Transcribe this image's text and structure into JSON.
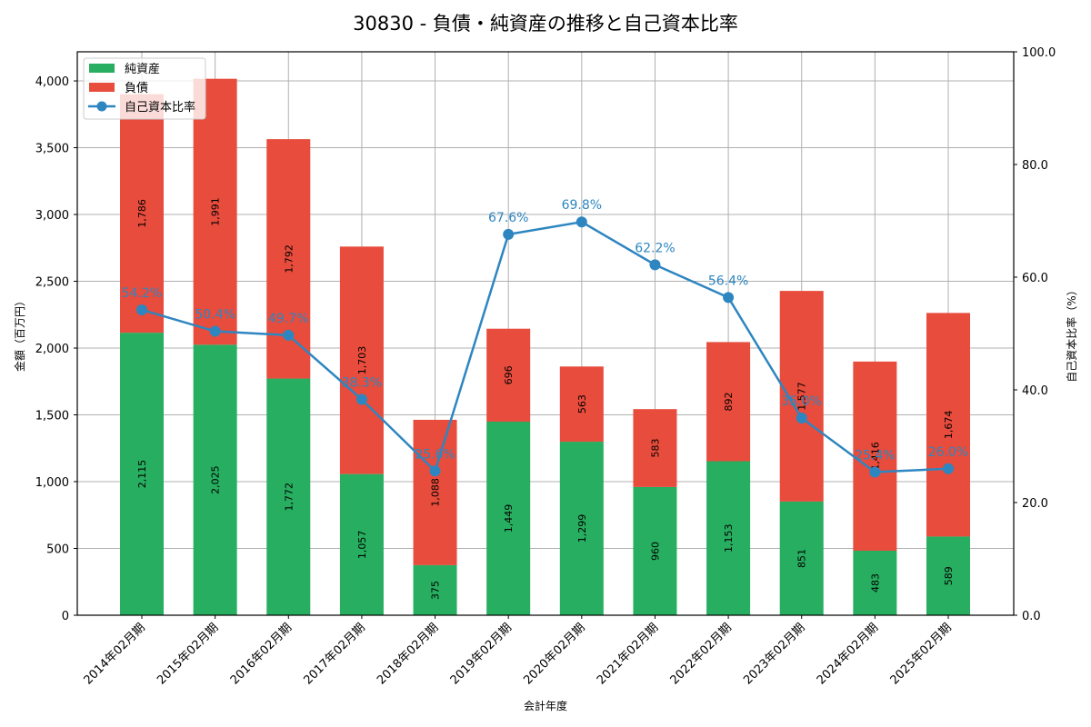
{
  "chart_data": {
    "type": "bar",
    "subtype": "stacked_bar_with_line_secondary_axis",
    "title": "30830 - 負債・純資産の推移と自己資本比率",
    "xlabel": "会計年度",
    "ylabel": "金額（百万円）",
    "y2label": "自己資本比率（%）",
    "categories": [
      "2014年02月期",
      "2015年02月期",
      "2016年02月期",
      "2017年02月期",
      "2018年02月期",
      "2019年02月期",
      "2020年02月期",
      "2021年02月期",
      "2022年02月期",
      "2023年02月期",
      "2024年02月期",
      "2025年02月期"
    ],
    "series": [
      {
        "name": "純資産",
        "type": "bar",
        "axis": "left",
        "color": "#27ae60",
        "values": [
          2115,
          2025,
          1772,
          1057,
          375,
          1449,
          1299,
          960,
          1153,
          851,
          483,
          589
        ],
        "labels": [
          "2,115",
          "2,025",
          "1,772",
          "1,057",
          "375",
          "1,449",
          "1,299",
          "960",
          "1,153",
          "851",
          "483",
          "589"
        ]
      },
      {
        "name": "負債",
        "type": "bar",
        "axis": "left",
        "color": "#e74c3c",
        "values": [
          1786,
          1991,
          1792,
          1703,
          1088,
          696,
          563,
          583,
          892,
          1577,
          1416,
          1674
        ],
        "labels": [
          "1,786",
          "1,991",
          "1,792",
          "1,703",
          "1,088",
          "696",
          "563",
          "583",
          "892",
          "1,577",
          "1,416",
          "1,674"
        ]
      },
      {
        "name": "自己資本比率",
        "type": "line",
        "axis": "right",
        "color": "#2e86c1",
        "values": [
          54.2,
          50.4,
          49.7,
          38.3,
          25.6,
          67.6,
          69.8,
          62.2,
          56.4,
          35.0,
          25.4,
          26.0
        ],
        "labels": [
          "54.2%",
          "50.4%",
          "49.7%",
          "38.3%",
          "25.6%",
          "67.6%",
          "69.8%",
          "62.2%",
          "56.4%",
          "35.0%",
          "25.4%",
          "26.0%"
        ]
      }
    ],
    "ylim": [
      0,
      4218
    ],
    "yticks": [
      0,
      500,
      1000,
      1500,
      2000,
      2500,
      3000,
      3500,
      4000
    ],
    "ytick_labels": [
      "0",
      "500",
      "1,000",
      "1,500",
      "2,000",
      "2,500",
      "3,000",
      "3,500",
      "4,000"
    ],
    "y2lim": [
      0,
      100
    ],
    "y2ticks": [
      0,
      20,
      40,
      60,
      80,
      100
    ],
    "y2tick_labels": [
      "0.0",
      "20.0",
      "40.0",
      "60.0",
      "80.0",
      "100.0"
    ],
    "grid": true,
    "legend_position": "upper left"
  },
  "legend": {
    "items": [
      {
        "label": "純資産",
        "color": "#27ae60",
        "kind": "bar"
      },
      {
        "label": "負債",
        "color": "#e74c3c",
        "kind": "bar"
      },
      {
        "label": "自己資本比率",
        "color": "#2e86c1",
        "kind": "line"
      }
    ]
  }
}
